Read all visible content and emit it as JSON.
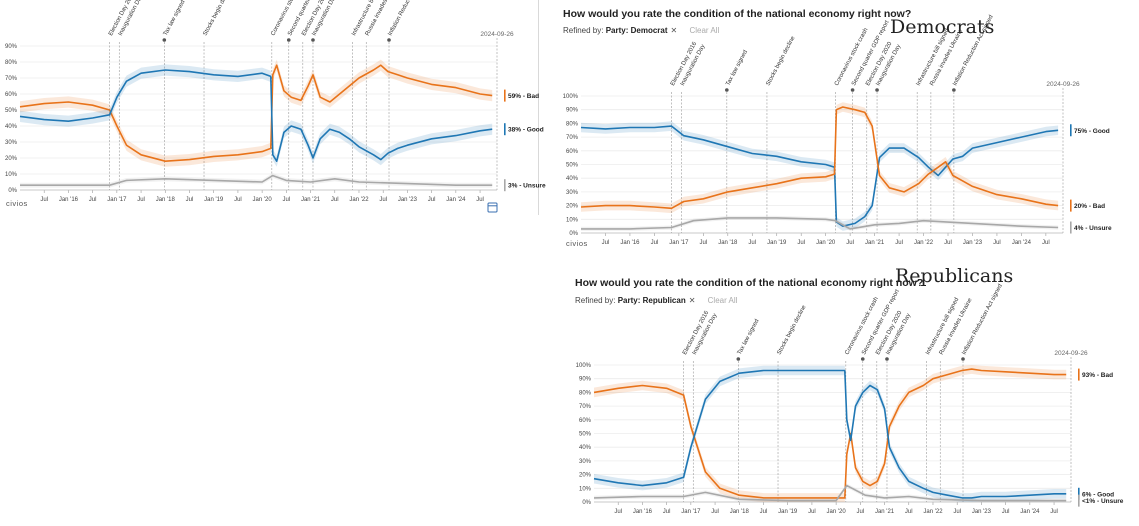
{
  "panels": [
    {
      "id": "overall",
      "title": "",
      "party_label": "",
      "refined_label": "",
      "refined_value": "",
      "clear_label": "",
      "logo": "civios",
      "calendar_icon": "calendar-icon"
    },
    {
      "id": "democrats",
      "title": "How would you rate the condition of the national economy right now?",
      "party_label": "Democrats",
      "refined_label": "Refined by:",
      "refined_value": "Party: Democrat",
      "clear_label": "Clear All",
      "logo": "civios",
      "calendar_icon": ""
    },
    {
      "id": "republicans",
      "title": "How would you rate the condition of the national economy right now?",
      "party_label": "Republicans",
      "refined_label": "Refined by:",
      "refined_value": "Party: Republican",
      "clear_label": "Clear All",
      "logo": "",
      "calendar_icon": ""
    }
  ],
  "chart_data": [
    {
      "type": "line",
      "panel": "overall",
      "title": "",
      "xlim": [
        2015.0,
        2024.85
      ],
      "ylim": [
        0,
        90
      ],
      "y_ticks": [
        0,
        10,
        20,
        30,
        40,
        50,
        60,
        70,
        80,
        90
      ],
      "y_tick_labels": [
        "0%",
        "10%",
        "20%",
        "30%",
        "40%",
        "50%",
        "60%",
        "70%",
        "80%",
        "90%"
      ],
      "x_ticks": [
        2015.5,
        2016.0,
        2016.5,
        2017.0,
        2017.5,
        2018.0,
        2018.5,
        2019.0,
        2019.5,
        2020.0,
        2020.5,
        2021.0,
        2021.5,
        2022.0,
        2022.5,
        2023.0,
        2023.5,
        2024.0,
        2024.5
      ],
      "x_tick_labels": [
        "Jul",
        "Jan '16",
        "Jul",
        "Jan '17",
        "Jul",
        "Jan '18",
        "Jul",
        "Jan '19",
        "Jul",
        "Jan '20",
        "Jul",
        "Jan '21",
        "Jul",
        "Jan '22",
        "Jul",
        "Jan '23",
        "Jul",
        "Jan '24",
        "Jul"
      ],
      "date_label": "2024-09-26",
      "events": [
        {
          "x": 2016.85,
          "label": "Election Day 2016",
          "marker": false
        },
        {
          "x": 2017.05,
          "label": "Inauguration Day",
          "marker": false
        },
        {
          "x": 2017.98,
          "label": "Tax law signed",
          "marker": true
        },
        {
          "x": 2018.8,
          "label": "Stocks begin decline",
          "marker": false
        },
        {
          "x": 2020.2,
          "label": "Coronavirus stock crash",
          "marker": false
        },
        {
          "x": 2020.55,
          "label": "Second quarter GDP report",
          "marker": true
        },
        {
          "x": 2020.84,
          "label": "Election Day 2020",
          "marker": false
        },
        {
          "x": 2021.05,
          "label": "Inauguration Day",
          "marker": true
        },
        {
          "x": 2021.87,
          "label": "Infrastructure bill signed",
          "marker": false
        },
        {
          "x": 2022.15,
          "label": "Russia invades Ukraine",
          "marker": false
        },
        {
          "x": 2022.62,
          "label": "Inflation Reduction Act signed",
          "marker": true
        }
      ],
      "series": [
        {
          "name": "Bad",
          "color": "#e8731a",
          "end_label": "59% - Bad",
          "x": [
            2015.0,
            2015.5,
            2016.0,
            2016.5,
            2016.85,
            2017.0,
            2017.2,
            2017.5,
            2018.0,
            2018.5,
            2019.0,
            2019.5,
            2020.0,
            2020.18,
            2020.22,
            2020.3,
            2020.45,
            2020.6,
            2020.8,
            2020.95,
            2021.05,
            2021.2,
            2021.4,
            2021.6,
            2021.8,
            2022.0,
            2022.3,
            2022.45,
            2022.6,
            2022.8,
            2023.0,
            2023.5,
            2024.0,
            2024.5,
            2024.75
          ],
          "y": [
            52,
            54,
            55,
            53,
            50,
            40,
            28,
            22,
            18,
            19,
            21,
            22,
            24,
            26,
            72,
            78,
            62,
            58,
            56,
            65,
            72,
            58,
            55,
            60,
            65,
            70,
            75,
            78,
            74,
            72,
            70,
            66,
            64,
            60,
            59
          ]
        },
        {
          "name": "Good",
          "color": "#1f77b4",
          "end_label": "38% - Good",
          "x": [
            2015.0,
            2015.5,
            2016.0,
            2016.5,
            2016.85,
            2017.0,
            2017.2,
            2017.5,
            2018.0,
            2018.5,
            2019.0,
            2019.5,
            2020.0,
            2020.18,
            2020.22,
            2020.3,
            2020.45,
            2020.6,
            2020.8,
            2020.95,
            2021.05,
            2021.2,
            2021.4,
            2021.6,
            2021.8,
            2022.0,
            2022.3,
            2022.45,
            2022.6,
            2022.8,
            2023.0,
            2023.5,
            2024.0,
            2024.5,
            2024.75
          ],
          "y": [
            46,
            44,
            43,
            45,
            47,
            58,
            68,
            73,
            75,
            74,
            72,
            71,
            73,
            71,
            22,
            18,
            36,
            40,
            38,
            28,
            20,
            32,
            38,
            36,
            32,
            27,
            22,
            19,
            23,
            26,
            28,
            32,
            34,
            37,
            38
          ]
        },
        {
          "name": "Unsure",
          "color": "#a8a8a8",
          "end_label": "3% - Unsure",
          "x": [
            2015.0,
            2016.0,
            2016.85,
            2017.2,
            2018.0,
            2019.0,
            2020.0,
            2020.22,
            2020.5,
            2021.0,
            2021.5,
            2022.0,
            2023.0,
            2024.0,
            2024.75
          ],
          "y": [
            3,
            3,
            3,
            6,
            7,
            6,
            5,
            9,
            6,
            5,
            7,
            5,
            4,
            3,
            3
          ]
        }
      ]
    },
    {
      "type": "line",
      "panel": "democrats",
      "title": "How would you rate the condition of the national economy right now?",
      "xlim": [
        2015.0,
        2024.85
      ],
      "ylim": [
        0,
        100
      ],
      "y_ticks": [
        0,
        10,
        20,
        30,
        40,
        50,
        60,
        70,
        80,
        90,
        100
      ],
      "y_tick_labels": [
        "0%",
        "10%",
        "20%",
        "30%",
        "40%",
        "50%",
        "60%",
        "70%",
        "80%",
        "90%",
        "100%"
      ],
      "x_ticks": [
        2015.5,
        2016.0,
        2016.5,
        2017.0,
        2017.5,
        2018.0,
        2018.5,
        2019.0,
        2019.5,
        2020.0,
        2020.5,
        2021.0,
        2021.5,
        2022.0,
        2022.5,
        2023.0,
        2023.5,
        2024.0,
        2024.5
      ],
      "x_tick_labels": [
        "Jul",
        "Jan '16",
        "Jul",
        "Jan '17",
        "Jul",
        "Jan '18",
        "Jul",
        "Jan '19",
        "Jul",
        "Jan '20",
        "Jul",
        "Jan '21",
        "Jul",
        "Jan '22",
        "Jul",
        "Jan '23",
        "Jul",
        "Jan '24",
        "Jul"
      ],
      "date_label": "2024-09-26",
      "events": [
        {
          "x": 2016.85,
          "label": "Election Day 2016",
          "marker": false
        },
        {
          "x": 2017.05,
          "label": "Inauguration Day",
          "marker": false
        },
        {
          "x": 2017.98,
          "label": "Tax law signed",
          "marker": true
        },
        {
          "x": 2018.8,
          "label": "Stocks begin decline",
          "marker": false
        },
        {
          "x": 2020.2,
          "label": "Coronavirus stock crash",
          "marker": false
        },
        {
          "x": 2020.55,
          "label": "Second quarter GDP report",
          "marker": true
        },
        {
          "x": 2020.84,
          "label": "Election Day 2020",
          "marker": false
        },
        {
          "x": 2021.05,
          "label": "Inauguration Day",
          "marker": true
        },
        {
          "x": 2021.87,
          "label": "Infrastructure bill signed",
          "marker": false
        },
        {
          "x": 2022.15,
          "label": "Russia invades Ukraine",
          "marker": false
        },
        {
          "x": 2022.62,
          "label": "Inflation Reduction Act signed",
          "marker": true
        }
      ],
      "series": [
        {
          "name": "Good",
          "color": "#1f77b4",
          "end_label": "75% - Good",
          "x": [
            2015.0,
            2015.5,
            2016.0,
            2016.5,
            2016.85,
            2017.1,
            2017.5,
            2018.0,
            2018.5,
            2019.0,
            2019.5,
            2020.0,
            2020.18,
            2020.22,
            2020.35,
            2020.6,
            2020.8,
            2020.95,
            2021.1,
            2021.3,
            2021.6,
            2021.9,
            2022.1,
            2022.3,
            2022.45,
            2022.6,
            2022.8,
            2023.0,
            2023.5,
            2024.0,
            2024.5,
            2024.75
          ],
          "y": [
            77,
            76,
            77,
            77,
            78,
            71,
            68,
            63,
            58,
            56,
            52,
            50,
            48,
            8,
            5,
            7,
            12,
            20,
            55,
            62,
            62,
            55,
            48,
            42,
            48,
            54,
            56,
            62,
            66,
            70,
            74,
            75
          ]
        },
        {
          "name": "Bad",
          "color": "#e8731a",
          "end_label": "20% - Bad",
          "x": [
            2015.0,
            2015.5,
            2016.0,
            2016.5,
            2016.85,
            2017.1,
            2017.5,
            2018.0,
            2018.5,
            2019.0,
            2019.5,
            2020.0,
            2020.18,
            2020.22,
            2020.35,
            2020.6,
            2020.8,
            2020.95,
            2021.1,
            2021.3,
            2021.6,
            2021.9,
            2022.1,
            2022.3,
            2022.45,
            2022.6,
            2022.8,
            2023.0,
            2023.5,
            2024.0,
            2024.5,
            2024.75
          ],
          "y": [
            19,
            20,
            20,
            19,
            18,
            23,
            25,
            30,
            33,
            36,
            40,
            41,
            43,
            90,
            92,
            90,
            88,
            78,
            42,
            33,
            30,
            36,
            43,
            48,
            52,
            42,
            38,
            34,
            28,
            25,
            21,
            20
          ]
        },
        {
          "name": "Unsure",
          "color": "#a8a8a8",
          "end_label": "4% - Unsure",
          "x": [
            2015.0,
            2016.0,
            2016.85,
            2017.3,
            2018.0,
            2019.0,
            2020.0,
            2020.2,
            2020.5,
            2021.0,
            2021.5,
            2022.0,
            2023.0,
            2024.0,
            2024.75
          ],
          "y": [
            3,
            3,
            4,
            9,
            11,
            11,
            10,
            9,
            3,
            6,
            7,
            9,
            7,
            5,
            4
          ]
        }
      ]
    },
    {
      "type": "line",
      "panel": "republicans",
      "title": "How would you rate the condition of the national economy right now?",
      "xlim": [
        2015.0,
        2024.85
      ],
      "ylim": [
        0,
        100
      ],
      "y_ticks": [
        0,
        10,
        20,
        30,
        40,
        50,
        60,
        70,
        80,
        90,
        100
      ],
      "y_tick_labels": [
        "0%",
        "10%",
        "20%",
        "30%",
        "40%",
        "50%",
        "60%",
        "70%",
        "80%",
        "90%",
        "100%"
      ],
      "x_ticks": [
        2015.5,
        2016.0,
        2016.5,
        2017.0,
        2017.5,
        2018.0,
        2018.5,
        2019.0,
        2019.5,
        2020.0,
        2020.5,
        2021.0,
        2021.5,
        2022.0,
        2022.5,
        2023.0,
        2023.5,
        2024.0,
        2024.5
      ],
      "x_tick_labels": [
        "Jul",
        "Jan '16",
        "Jul",
        "Jan '17",
        "Jul",
        "Jan '18",
        "Jul",
        "Jan '19",
        "Jul",
        "Jan '20",
        "Jul",
        "Jan '21",
        "Jul",
        "Jan '22",
        "Jul",
        "Jan '23",
        "Jul",
        "Jan '24",
        "Jul"
      ],
      "date_label": "2024-09-26",
      "events": [
        {
          "x": 2016.85,
          "label": "Election Day 2016",
          "marker": false
        },
        {
          "x": 2017.05,
          "label": "Inauguration Day",
          "marker": false
        },
        {
          "x": 2017.98,
          "label": "Tax law signed",
          "marker": true
        },
        {
          "x": 2018.8,
          "label": "Stocks begin decline",
          "marker": false
        },
        {
          "x": 2020.2,
          "label": "Coronavirus stock crash",
          "marker": false
        },
        {
          "x": 2020.55,
          "label": "Second quarter GDP report",
          "marker": true
        },
        {
          "x": 2020.84,
          "label": "Election Day 2020",
          "marker": false
        },
        {
          "x": 2021.05,
          "label": "Inauguration Day",
          "marker": true
        },
        {
          "x": 2021.87,
          "label": "Infrastructure bill signed",
          "marker": false
        },
        {
          "x": 2022.15,
          "label": "Russia invades Ukraine",
          "marker": false
        },
        {
          "x": 2022.62,
          "label": "Inflation Reduction Act signed",
          "marker": true
        }
      ],
      "series": [
        {
          "name": "Bad",
          "color": "#e8731a",
          "end_label": "93% - Bad",
          "x": [
            2015.0,
            2015.5,
            2016.0,
            2016.5,
            2016.85,
            2017.0,
            2017.3,
            2017.6,
            2018.0,
            2018.5,
            2019.0,
            2019.5,
            2020.0,
            2020.18,
            2020.22,
            2020.3,
            2020.4,
            2020.55,
            2020.7,
            2020.85,
            2021.0,
            2021.1,
            2021.3,
            2021.5,
            2021.8,
            2022.0,
            2022.3,
            2022.6,
            2022.8,
            2023.0,
            2023.5,
            2024.0,
            2024.5,
            2024.75
          ],
          "y": [
            80,
            83,
            85,
            83,
            78,
            55,
            22,
            10,
            5,
            3,
            3,
            3,
            3,
            3,
            35,
            50,
            25,
            15,
            12,
            15,
            28,
            55,
            70,
            80,
            85,
            90,
            93,
            96,
            97,
            96,
            95,
            94,
            93,
            93
          ]
        },
        {
          "name": "Good",
          "color": "#1f77b4",
          "end_label": "6% - Good",
          "x": [
            2015.0,
            2015.5,
            2016.0,
            2016.5,
            2016.85,
            2017.0,
            2017.3,
            2017.6,
            2018.0,
            2018.5,
            2019.0,
            2019.5,
            2020.0,
            2020.18,
            2020.22,
            2020.3,
            2020.4,
            2020.55,
            2020.7,
            2020.85,
            2021.0,
            2021.1,
            2021.3,
            2021.5,
            2021.8,
            2022.0,
            2022.3,
            2022.6,
            2022.8,
            2023.0,
            2023.5,
            2024.0,
            2024.5,
            2024.75
          ],
          "y": [
            17,
            14,
            12,
            14,
            18,
            40,
            75,
            88,
            94,
            96,
            96,
            96,
            96,
            96,
            60,
            45,
            70,
            80,
            85,
            82,
            68,
            40,
            25,
            15,
            10,
            7,
            5,
            3,
            3,
            4,
            4,
            5,
            6,
            6
          ]
        },
        {
          "name": "Unsure",
          "color": "#a8a8a8",
          "end_label": "<1% - Unsure",
          "x": [
            2015.0,
            2016.0,
            2016.85,
            2017.3,
            2018.0,
            2019.0,
            2020.0,
            2020.22,
            2020.6,
            2021.0,
            2021.5,
            2022.0,
            2023.0,
            2024.0,
            2024.75
          ],
          "y": [
            3,
            4,
            4,
            7,
            2,
            1,
            1,
            12,
            5,
            3,
            4,
            2,
            1,
            1,
            1
          ]
        }
      ]
    }
  ]
}
